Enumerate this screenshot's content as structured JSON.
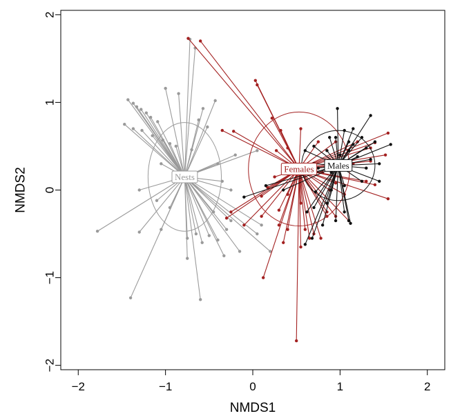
{
  "chart_data": {
    "type": "scatter",
    "title": "",
    "xlabel": "NMDS1",
    "ylabel": "NMDS2",
    "xlim": [
      -2.2,
      2.2
    ],
    "ylim": [
      -2.05,
      2.05
    ],
    "xticks": [
      -2,
      -1,
      0,
      1,
      2
    ],
    "yticks": [
      -2,
      -1,
      0,
      1,
      2
    ],
    "xtick_labels": [
      "−2",
      "−1",
      "0",
      "1",
      "2"
    ],
    "ytick_labels": [
      "−2",
      "−1",
      "0",
      "1",
      "2"
    ],
    "grid": false,
    "legend": "none",
    "series": [
      {
        "name": "Nests",
        "color": "#9a9a9a",
        "centroid": [
          -0.78,
          0.15
        ],
        "ellipse": {
          "rx": 0.42,
          "ry": 0.62
        },
        "points": [
          [
            -0.72,
            1.72
          ],
          [
            -0.66,
            1.62
          ],
          [
            -1.0,
            1.16
          ],
          [
            -0.85,
            1.1
          ],
          [
            -0.43,
            1.02
          ],
          [
            -0.57,
            0.93
          ],
          [
            -1.43,
            1.03
          ],
          [
            -1.37,
            0.99
          ],
          [
            -1.33,
            0.95
          ],
          [
            -1.28,
            0.92
          ],
          [
            -1.22,
            0.88
          ],
          [
            -1.17,
            0.83
          ],
          [
            -1.09,
            0.78
          ],
          [
            -1.47,
            0.75
          ],
          [
            -1.37,
            0.7
          ],
          [
            -1.27,
            0.68
          ],
          [
            -1.15,
            0.62
          ],
          [
            -1.03,
            0.57
          ],
          [
            -0.95,
            0.53
          ],
          [
            -0.88,
            0.5
          ],
          [
            -0.62,
            0.8
          ],
          [
            -0.52,
            0.72
          ],
          [
            -0.7,
            0.46
          ],
          [
            0.05,
            0.45
          ],
          [
            -0.2,
            0.4
          ],
          [
            -0.4,
            0.3
          ],
          [
            -1.05,
            0.3
          ],
          [
            -1.3,
            0.0
          ],
          [
            -1.1,
            -0.12
          ],
          [
            -0.95,
            -0.2
          ],
          [
            -0.35,
            0.1
          ],
          [
            -0.25,
            0.0
          ],
          [
            -0.45,
            -0.25
          ],
          [
            -1.78,
            -0.47
          ],
          [
            -1.3,
            -0.48
          ],
          [
            -1.05,
            -0.45
          ],
          [
            -0.75,
            -0.55
          ],
          [
            -0.65,
            -0.5
          ],
          [
            -0.5,
            -0.52
          ],
          [
            -0.4,
            -0.57
          ],
          [
            -0.75,
            -0.78
          ],
          [
            -0.58,
            -0.6
          ],
          [
            -0.33,
            -0.75
          ],
          [
            -0.15,
            -0.7
          ],
          [
            0.05,
            -0.5
          ],
          [
            0.1,
            -0.4
          ],
          [
            -0.25,
            -0.35
          ],
          [
            0.2,
            -0.7
          ],
          [
            -1.4,
            -1.23
          ],
          [
            -0.6,
            -1.25
          ],
          [
            -0.3,
            -0.45
          ]
        ]
      },
      {
        "name": "Females",
        "color": "#a32020",
        "centroid": [
          0.53,
          0.24
        ],
        "ellipse": {
          "rx": 0.58,
          "ry": 0.65
        },
        "points": [
          [
            -0.74,
            1.73
          ],
          [
            -0.6,
            1.7
          ],
          [
            0.03,
            1.25
          ],
          [
            0.05,
            1.2
          ],
          [
            -0.35,
            0.68
          ],
          [
            -0.22,
            0.67
          ],
          [
            0.22,
            0.82
          ],
          [
            0.32,
            0.68
          ],
          [
            0.27,
            0.45
          ],
          [
            0.4,
            0.48
          ],
          [
            0.55,
            0.7
          ],
          [
            0.75,
            0.55
          ],
          [
            0.95,
            0.55
          ],
          [
            1.2,
            0.55
          ],
          [
            1.55,
            0.65
          ],
          [
            1.4,
            0.54
          ],
          [
            1.35,
            0.48
          ],
          [
            1.52,
            0.4
          ],
          [
            1.35,
            0.33
          ],
          [
            1.15,
            0.3
          ],
          [
            1.3,
            0.1
          ],
          [
            1.4,
            0.06
          ],
          [
            1.55,
            -0.1
          ],
          [
            1.05,
            -0.05
          ],
          [
            0.95,
            0.08
          ],
          [
            0.8,
            0.2
          ],
          [
            0.88,
            0.0
          ],
          [
            0.25,
            0.15
          ],
          [
            0.17,
            0.03
          ],
          [
            0.1,
            -0.07
          ],
          [
            0.4,
            -0.05
          ],
          [
            0.55,
            -0.15
          ],
          [
            0.3,
            -0.23
          ],
          [
            -0.3,
            -0.32
          ],
          [
            -0.25,
            -0.25
          ],
          [
            0.1,
            -0.3
          ],
          [
            0.3,
            -0.4
          ],
          [
            0.4,
            -0.45
          ],
          [
            0.6,
            -0.45
          ],
          [
            0.7,
            -0.5
          ],
          [
            0.78,
            -0.55
          ],
          [
            0.85,
            -0.25
          ],
          [
            0.85,
            -0.3
          ],
          [
            0.35,
            -0.6
          ],
          [
            0.55,
            -0.65
          ],
          [
            0.65,
            -0.55
          ],
          [
            -0.1,
            -0.4
          ],
          [
            0.12,
            -1.0
          ],
          [
            0.5,
            -1.72
          ],
          [
            1.1,
            -0.35
          ],
          [
            0.95,
            -0.3
          ]
        ]
      },
      {
        "name": "Males",
        "color": "#111111",
        "centroid": [
          0.98,
          0.28
        ],
        "ellipse": {
          "rx": 0.42,
          "ry": 0.4
        },
        "points": [
          [
            0.97,
            0.93
          ],
          [
            1.05,
            0.68
          ],
          [
            1.1,
            0.55
          ],
          [
            1.15,
            0.7
          ],
          [
            1.25,
            0.6
          ],
          [
            1.35,
            0.85
          ],
          [
            1.4,
            0.55
          ],
          [
            1.58,
            0.52
          ],
          [
            1.3,
            0.48
          ],
          [
            1.1,
            0.45
          ],
          [
            1.0,
            0.4
          ],
          [
            0.85,
            0.45
          ],
          [
            0.7,
            0.5
          ],
          [
            0.6,
            0.45
          ],
          [
            0.7,
            0.3
          ],
          [
            0.75,
            0.25
          ],
          [
            0.9,
            0.2
          ],
          [
            1.35,
            0.35
          ],
          [
            1.3,
            0.25
          ],
          [
            1.45,
            0.3
          ],
          [
            1.45,
            0.1
          ],
          [
            1.25,
            0.1
          ],
          [
            1.05,
            0.05
          ],
          [
            0.9,
            0.0
          ],
          [
            0.72,
            -0.02
          ],
          [
            0.85,
            -0.15
          ],
          [
            1.05,
            -0.25
          ],
          [
            1.1,
            -0.35
          ],
          [
            0.7,
            -0.2
          ],
          [
            0.62,
            -0.25
          ],
          [
            0.8,
            -0.4
          ],
          [
            -0.1,
            -0.08
          ],
          [
            0.15,
            0.05
          ],
          [
            0.35,
            0.0
          ],
          [
            0.6,
            -0.62
          ],
          [
            0.68,
            -0.55
          ],
          [
            0.95,
            -0.35
          ],
          [
            1.12,
            -0.38
          ],
          [
            1.2,
            0.38
          ],
          [
            0.95,
            0.6
          ],
          [
            0.88,
            0.6
          ],
          [
            1.15,
            0.52
          ]
        ]
      }
    ]
  }
}
